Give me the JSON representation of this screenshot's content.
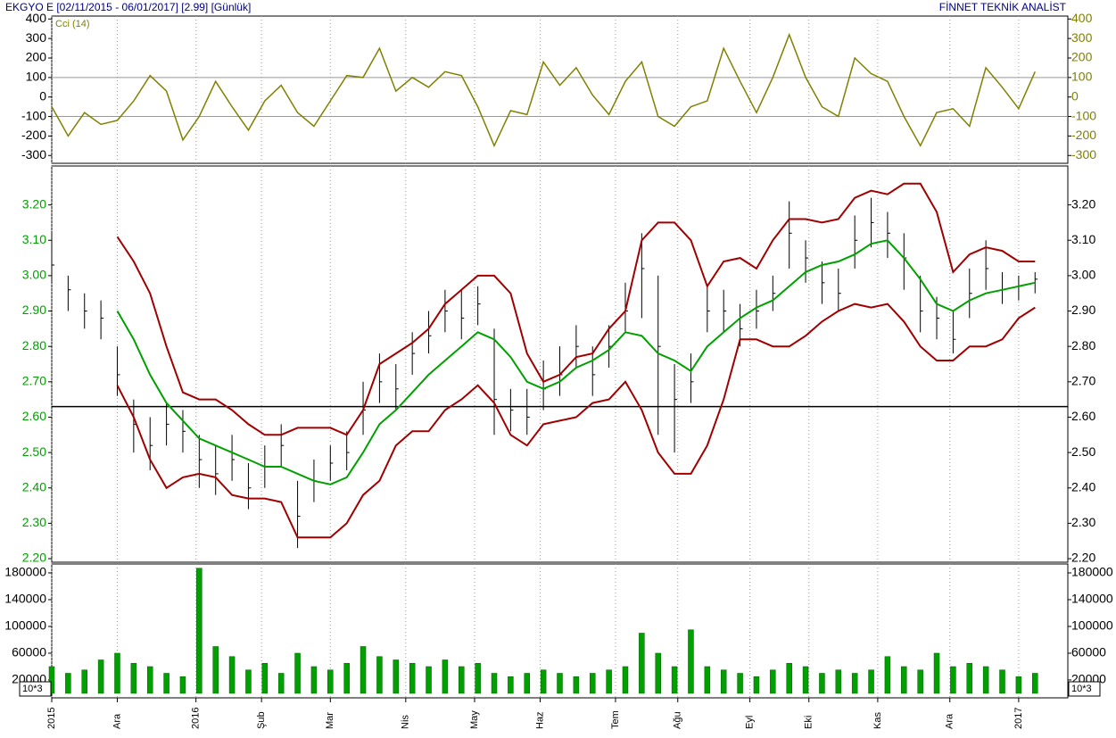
{
  "header": {
    "title": "EKGYO E  [02/11/2015 - 06/01/2017]  [2.99]  [Günlük]",
    "brand": "FİNNET TEKNİK ANALİST"
  },
  "chart_data": [
    {
      "type": "line",
      "label": "Cci (14)",
      "x": [
        0,
        5,
        10,
        15,
        20,
        25,
        30,
        35,
        40,
        45,
        50,
        55,
        60,
        65,
        70,
        75,
        80,
        85,
        90,
        95,
        100,
        105,
        110,
        115,
        120,
        125,
        130,
        135,
        140,
        145,
        150,
        155,
        160,
        165,
        170,
        175,
        180,
        185,
        190,
        195,
        200,
        205,
        210,
        215,
        220,
        225,
        230,
        235,
        240,
        245,
        250,
        255,
        260,
        265,
        270,
        275,
        280,
        285,
        290,
        295,
        300
      ],
      "xlim": [
        0,
        310
      ],
      "ylim": [
        -340,
        415
      ],
      "yticks": [
        -300,
        -200,
        -100,
        0,
        100,
        200,
        300,
        400
      ],
      "ref_lines": [
        100,
        -100
      ],
      "series": [
        {
          "color": "#808000",
          "values": [
            -50,
            -200,
            -80,
            -140,
            -120,
            -20,
            110,
            30,
            -220,
            -100,
            80,
            -50,
            -170,
            -20,
            60,
            -80,
            -150,
            -20,
            110,
            100,
            250,
            30,
            100,
            50,
            130,
            110,
            -50,
            -250,
            -70,
            -90,
            180,
            60,
            150,
            10,
            -90,
            80,
            180,
            -100,
            -150,
            -50,
            -20,
            250,
            80,
            -80,
            100,
            320,
            100,
            -50,
            -100,
            200,
            120,
            80,
            -100,
            -250,
            -80,
            -60,
            -150,
            150,
            50,
            -60,
            130
          ]
        }
      ]
    },
    {
      "type": "ohlc",
      "x": [
        0,
        5,
        10,
        15,
        20,
        25,
        30,
        35,
        40,
        45,
        50,
        55,
        60,
        65,
        70,
        75,
        80,
        85,
        90,
        95,
        100,
        105,
        110,
        115,
        120,
        125,
        130,
        135,
        140,
        145,
        150,
        155,
        160,
        165,
        170,
        175,
        180,
        185,
        190,
        195,
        200,
        205,
        210,
        215,
        220,
        225,
        230,
        235,
        240,
        245,
        250,
        255,
        260,
        265,
        270,
        275,
        280,
        285,
        290,
        295,
        300
      ],
      "xlim": [
        0,
        310
      ],
      "ylim": [
        2.19,
        3.31
      ],
      "yticks": [
        {
          "value": 2.2,
          "label": "2.20"
        },
        {
          "value": 2.3,
          "label": "2.30"
        },
        {
          "value": 2.4,
          "label": "2.40"
        },
        {
          "value": 2.5,
          "label": "2.50"
        },
        {
          "value": 2.6,
          "label": "2.60"
        },
        {
          "value": 2.7,
          "label": "2.70"
        },
        {
          "value": 2.8,
          "label": "2.80"
        },
        {
          "value": 2.9,
          "label": "2.90"
        },
        {
          "value": 3.0,
          "label": "3.00"
        },
        {
          "value": 3.1,
          "label": "3.10"
        },
        {
          "value": 3.2,
          "label": "3.20"
        }
      ],
      "ref_lines": [
        2.63
      ],
      "color": "#000000",
      "high": [
        3.12,
        3.0,
        2.95,
        2.93,
        2.8,
        2.65,
        2.6,
        2.64,
        2.62,
        2.55,
        2.52,
        2.55,
        2.47,
        2.52,
        2.58,
        2.42,
        2.48,
        2.52,
        2.56,
        2.7,
        2.78,
        2.75,
        2.84,
        2.9,
        2.96,
        2.96,
        2.97,
        2.85,
        2.68,
        2.68,
        2.76,
        2.8,
        2.86,
        2.8,
        2.86,
        2.98,
        3.12,
        3.0,
        2.75,
        2.78,
        2.97,
        2.96,
        2.92,
        2.96,
        3.0,
        3.21,
        3.1,
        3.04,
        3.02,
        3.17,
        3.22,
        3.18,
        3.12,
        3.0,
        2.94,
        2.9,
        3.02,
        3.1,
        3.01,
        3.0,
        3.01
      ],
      "low": [
        2.98,
        2.9,
        2.85,
        2.82,
        2.66,
        2.5,
        2.45,
        2.52,
        2.5,
        2.4,
        2.38,
        2.42,
        2.34,
        2.4,
        2.46,
        2.23,
        2.36,
        2.42,
        2.45,
        2.55,
        2.64,
        2.62,
        2.72,
        2.78,
        2.84,
        2.82,
        2.86,
        2.55,
        2.56,
        2.55,
        2.62,
        2.66,
        2.74,
        2.66,
        2.74,
        2.84,
        2.88,
        2.55,
        2.5,
        2.64,
        2.84,
        2.84,
        2.8,
        2.85,
        2.9,
        3.02,
        2.98,
        2.92,
        2.9,
        3.02,
        3.08,
        3.05,
        2.96,
        2.84,
        2.82,
        2.78,
        2.88,
        2.96,
        2.92,
        2.93,
        2.95
      ],
      "close": [
        3.03,
        2.96,
        2.9,
        2.88,
        2.72,
        2.58,
        2.52,
        2.58,
        2.56,
        2.48,
        2.44,
        2.48,
        2.4,
        2.46,
        2.52,
        2.32,
        2.42,
        2.47,
        2.5,
        2.62,
        2.7,
        2.68,
        2.78,
        2.83,
        2.9,
        2.88,
        2.92,
        2.65,
        2.62,
        2.6,
        2.68,
        2.72,
        2.8,
        2.72,
        2.8,
        2.9,
        3.02,
        2.8,
        2.65,
        2.7,
        2.9,
        2.9,
        2.85,
        2.9,
        2.95,
        3.12,
        3.05,
        2.98,
        2.95,
        3.1,
        3.15,
        3.12,
        3.05,
        2.9,
        2.88,
        2.82,
        2.95,
        3.02,
        2.96,
        2.97,
        2.99
      ],
      "series": [
        {
          "color": "#a00000",
          "values": [
            null,
            null,
            null,
            null,
            3.11,
            3.04,
            2.95,
            2.8,
            2.67,
            2.65,
            2.65,
            2.62,
            2.58,
            2.55,
            2.55,
            2.57,
            2.57,
            2.57,
            2.55,
            2.62,
            2.75,
            2.78,
            2.81,
            2.85,
            2.92,
            2.96,
            3.0,
            3.0,
            2.95,
            2.78,
            2.7,
            2.72,
            2.77,
            2.78,
            2.85,
            2.9,
            3.1,
            3.15,
            3.15,
            3.1,
            2.97,
            3.04,
            3.05,
            3.02,
            3.1,
            3.16,
            3.16,
            3.15,
            3.16,
            3.22,
            3.24,
            3.23,
            3.26,
            3.26,
            3.18,
            3.01,
            3.06,
            3.08,
            3.07,
            3.04,
            3.04
          ]
        },
        {
          "color": "#00a000",
          "values": [
            null,
            null,
            null,
            null,
            2.9,
            2.82,
            2.72,
            2.64,
            2.59,
            2.54,
            2.52,
            2.5,
            2.48,
            2.46,
            2.46,
            2.44,
            2.42,
            2.41,
            2.43,
            2.5,
            2.58,
            2.62,
            2.67,
            2.72,
            2.76,
            2.8,
            2.84,
            2.82,
            2.77,
            2.7,
            2.68,
            2.7,
            2.74,
            2.76,
            2.79,
            2.84,
            2.83,
            2.78,
            2.76,
            2.73,
            2.8,
            2.84,
            2.88,
            2.91,
            2.93,
            2.97,
            3.01,
            3.03,
            3.04,
            3.06,
            3.09,
            3.1,
            3.05,
            2.99,
            2.92,
            2.9,
            2.93,
            2.95,
            2.96,
            2.97,
            2.98
          ]
        },
        {
          "color": "#a00000",
          "values": [
            null,
            null,
            null,
            null,
            2.69,
            2.6,
            2.48,
            2.4,
            2.43,
            2.44,
            2.43,
            2.38,
            2.37,
            2.37,
            2.36,
            2.26,
            2.26,
            2.26,
            2.3,
            2.38,
            2.42,
            2.52,
            2.56,
            2.56,
            2.62,
            2.65,
            2.69,
            2.64,
            2.55,
            2.52,
            2.58,
            2.59,
            2.6,
            2.64,
            2.65,
            2.7,
            2.62,
            2.5,
            2.44,
            2.44,
            2.52,
            2.65,
            2.82,
            2.82,
            2.8,
            2.8,
            2.83,
            2.87,
            2.9,
            2.92,
            2.91,
            2.92,
            2.87,
            2.8,
            2.76,
            2.76,
            2.8,
            2.8,
            2.82,
            2.88,
            2.91
          ]
        }
      ]
    },
    {
      "type": "bar",
      "unit_label": "10*3",
      "color": "#00a000",
      "x": [
        0,
        5,
        10,
        15,
        20,
        25,
        30,
        35,
        40,
        45,
        50,
        55,
        60,
        65,
        70,
        75,
        80,
        85,
        90,
        95,
        100,
        105,
        110,
        115,
        120,
        125,
        130,
        135,
        140,
        145,
        150,
        155,
        160,
        165,
        170,
        175,
        180,
        185,
        190,
        195,
        200,
        205,
        210,
        215,
        220,
        225,
        230,
        235,
        240,
        245,
        250,
        255,
        260,
        265,
        270,
        275,
        280,
        285,
        290,
        295,
        300
      ],
      "xlim": [
        0,
        310
      ],
      "ylim": [
        -6700,
        193300
      ],
      "yticks": [
        20000,
        60000,
        100000,
        140000,
        180000
      ],
      "xticks": [
        {
          "value": 0,
          "label": "2015"
        },
        {
          "value": 20,
          "label": "Ara"
        },
        {
          "value": 44,
          "label": "2016"
        },
        {
          "value": 64,
          "label": "Şub"
        },
        {
          "value": 85,
          "label": "Mar"
        },
        {
          "value": 108,
          "label": "Nis"
        },
        {
          "value": 129,
          "label": "May"
        },
        {
          "value": 149,
          "label": "Haz"
        },
        {
          "value": 172,
          "label": "Tem"
        },
        {
          "value": 191,
          "label": "Ağu"
        },
        {
          "value": 213,
          "label": "Eyl"
        },
        {
          "value": 231,
          "label": "Eki"
        },
        {
          "value": 252,
          "label": "Kas"
        },
        {
          "value": 274,
          "label": "Ara"
        },
        {
          "value": 295,
          "label": "2017"
        }
      ],
      "values": [
        40000,
        30000,
        35000,
        50000,
        60000,
        45000,
        40000,
        30000,
        25000,
        187000,
        70000,
        55000,
        35000,
        45000,
        30000,
        60000,
        40000,
        35000,
        45000,
        70000,
        55000,
        50000,
        45000,
        40000,
        50000,
        40000,
        45000,
        30000,
        25000,
        30000,
        35000,
        30000,
        25000,
        30000,
        35000,
        40000,
        90000,
        60000,
        40000,
        95000,
        40000,
        35000,
        30000,
        25000,
        35000,
        45000,
        40000,
        30000,
        35000,
        30000,
        35000,
        55000,
        40000,
        35000,
        60000,
        40000,
        45000,
        40000,
        35000,
        25000,
        30000
      ]
    }
  ]
}
